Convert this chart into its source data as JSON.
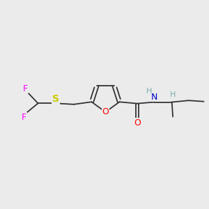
{
  "background_color": "#ebebeb",
  "bond_color": "#333333",
  "F_color": "#ff00ff",
  "S_color": "#cccc00",
  "O_color": "#ff0000",
  "N_color": "#0000cc",
  "H_color": "#7aadad",
  "figsize": [
    3.0,
    3.0
  ],
  "dpi": 100,
  "xlim": [
    0,
    10
  ],
  "ylim": [
    0,
    10
  ]
}
